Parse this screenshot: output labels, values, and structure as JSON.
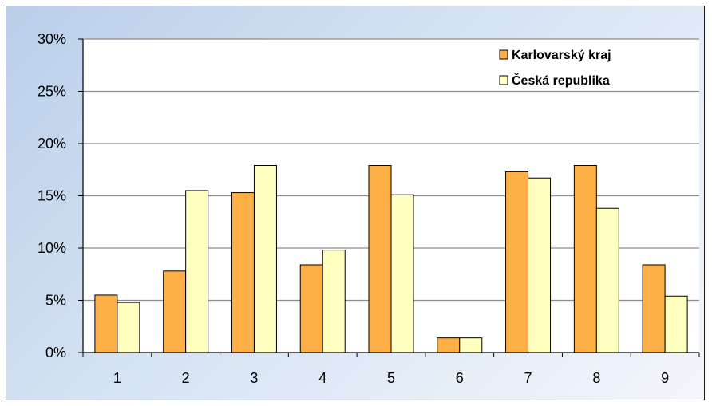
{
  "chart_data": {
    "type": "bar",
    "categories": [
      "1",
      "2",
      "3",
      "4",
      "5",
      "6",
      "7",
      "8",
      "9"
    ],
    "series": [
      {
        "name": "Karlovarský kraj",
        "color": "#FDAF46",
        "values": [
          0.055,
          0.078,
          0.153,
          0.084,
          0.179,
          0.014,
          0.173,
          0.179,
          0.084
        ]
      },
      {
        "name": "Česká republika",
        "color": "#FFFFC0",
        "values": [
          0.048,
          0.155,
          0.179,
          0.098,
          0.151,
          0.014,
          0.167,
          0.138,
          0.054
        ]
      }
    ],
    "ylim": [
      0,
      0.3
    ],
    "yticks": [
      "0%",
      "5%",
      "10%",
      "15%",
      "20%",
      "25%",
      "30%"
    ],
    "grid": true,
    "legend_position": "top-right"
  }
}
